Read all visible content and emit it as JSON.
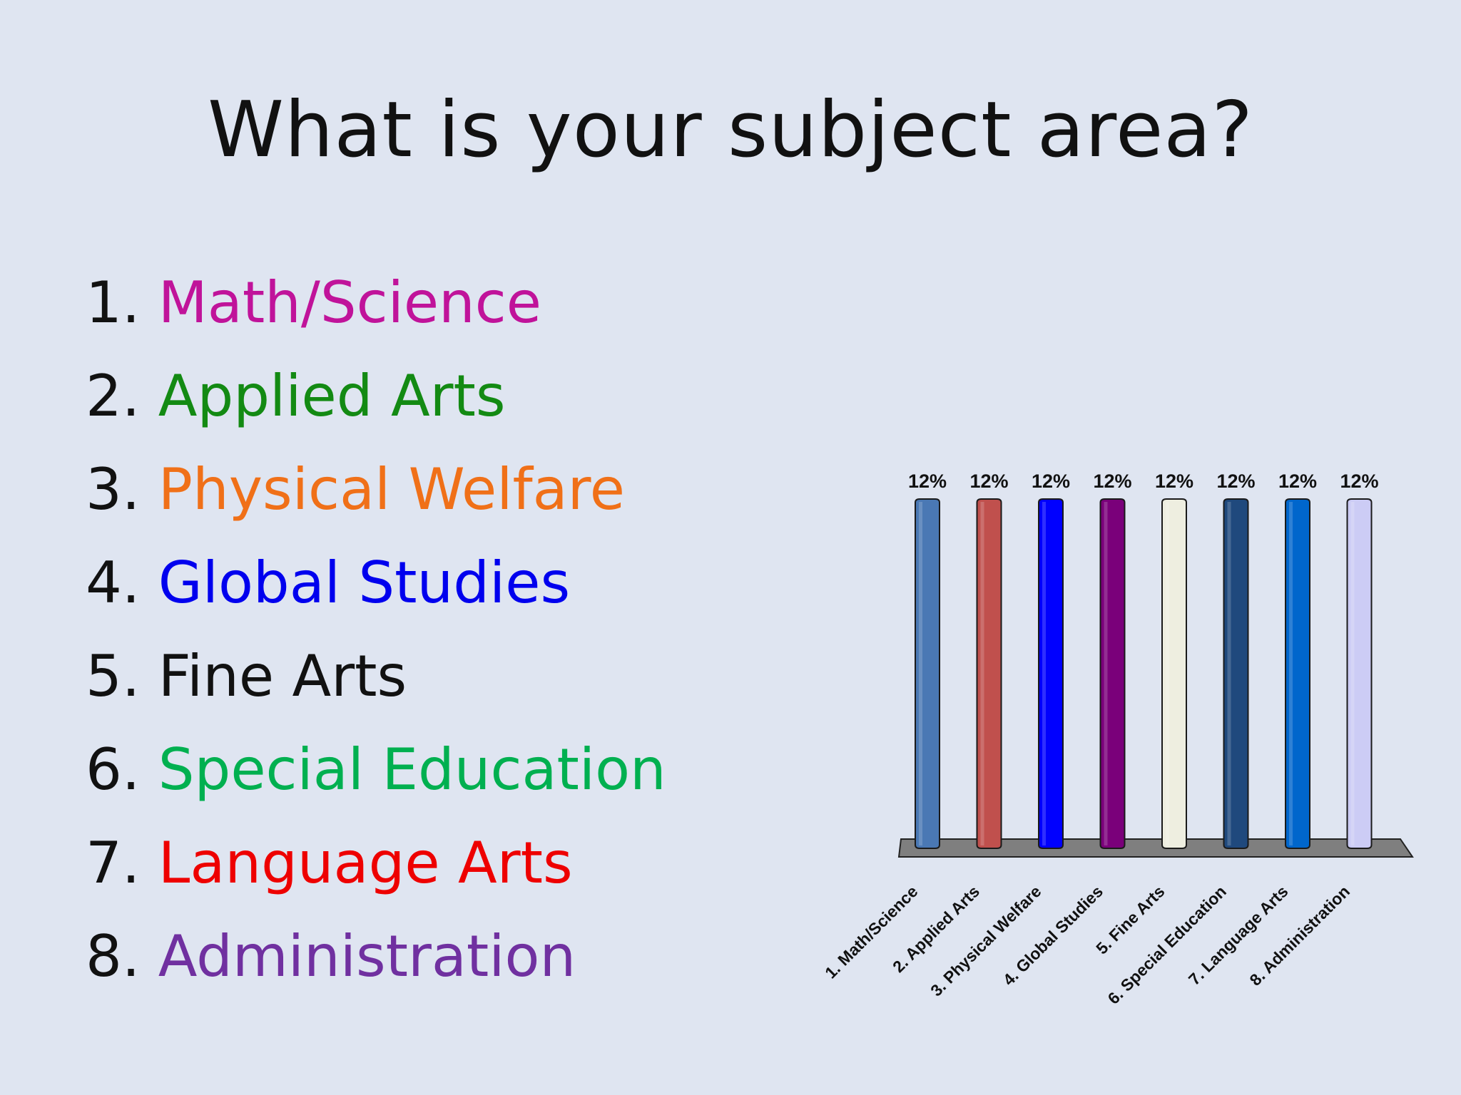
{
  "title": "What is your subject area?",
  "options": [
    {
      "number": "1.",
      "label": "Math/Science",
      "color": "#c0139a"
    },
    {
      "number": "2.",
      "label": "Applied Arts",
      "color": "#138a13"
    },
    {
      "number": "3.",
      "label": "Physical Welfare",
      "color": "#f07018"
    },
    {
      "number": "4.",
      "label": "Global Studies",
      "color": "#0000ee"
    },
    {
      "number": "5.",
      "label": "Fine Arts",
      "color": "#111111"
    },
    {
      "number": "6.",
      "label": "Special Education",
      "color": "#00b050"
    },
    {
      "number": "7.",
      "label": "Language Arts",
      "color": "#ee0000"
    },
    {
      "number": "8.",
      "label": "Administration",
      "color": "#7030a0"
    }
  ],
  "chart_data": {
    "type": "bar",
    "categories": [
      "1. Math/Science",
      "2. Applied Arts",
      "3. Physical Welfare",
      "4. Global Studies",
      "5. Fine Arts",
      "6. Special Education",
      "7. Language Arts",
      "8. Administration"
    ],
    "values": [
      12,
      12,
      12,
      12,
      12,
      12,
      12,
      12
    ],
    "data_labels": [
      "12%",
      "12%",
      "12%",
      "12%",
      "12%",
      "12%",
      "12%",
      "12%"
    ],
    "ylim": [
      0,
      12
    ],
    "bar_colors": [
      "#4a78b4",
      "#c0504d",
      "#0000ff",
      "#7a007a",
      "#eeeee0",
      "#1f497d",
      "#0066cc",
      "#ccccf5"
    ],
    "floor_color": "#7f7f7f"
  }
}
